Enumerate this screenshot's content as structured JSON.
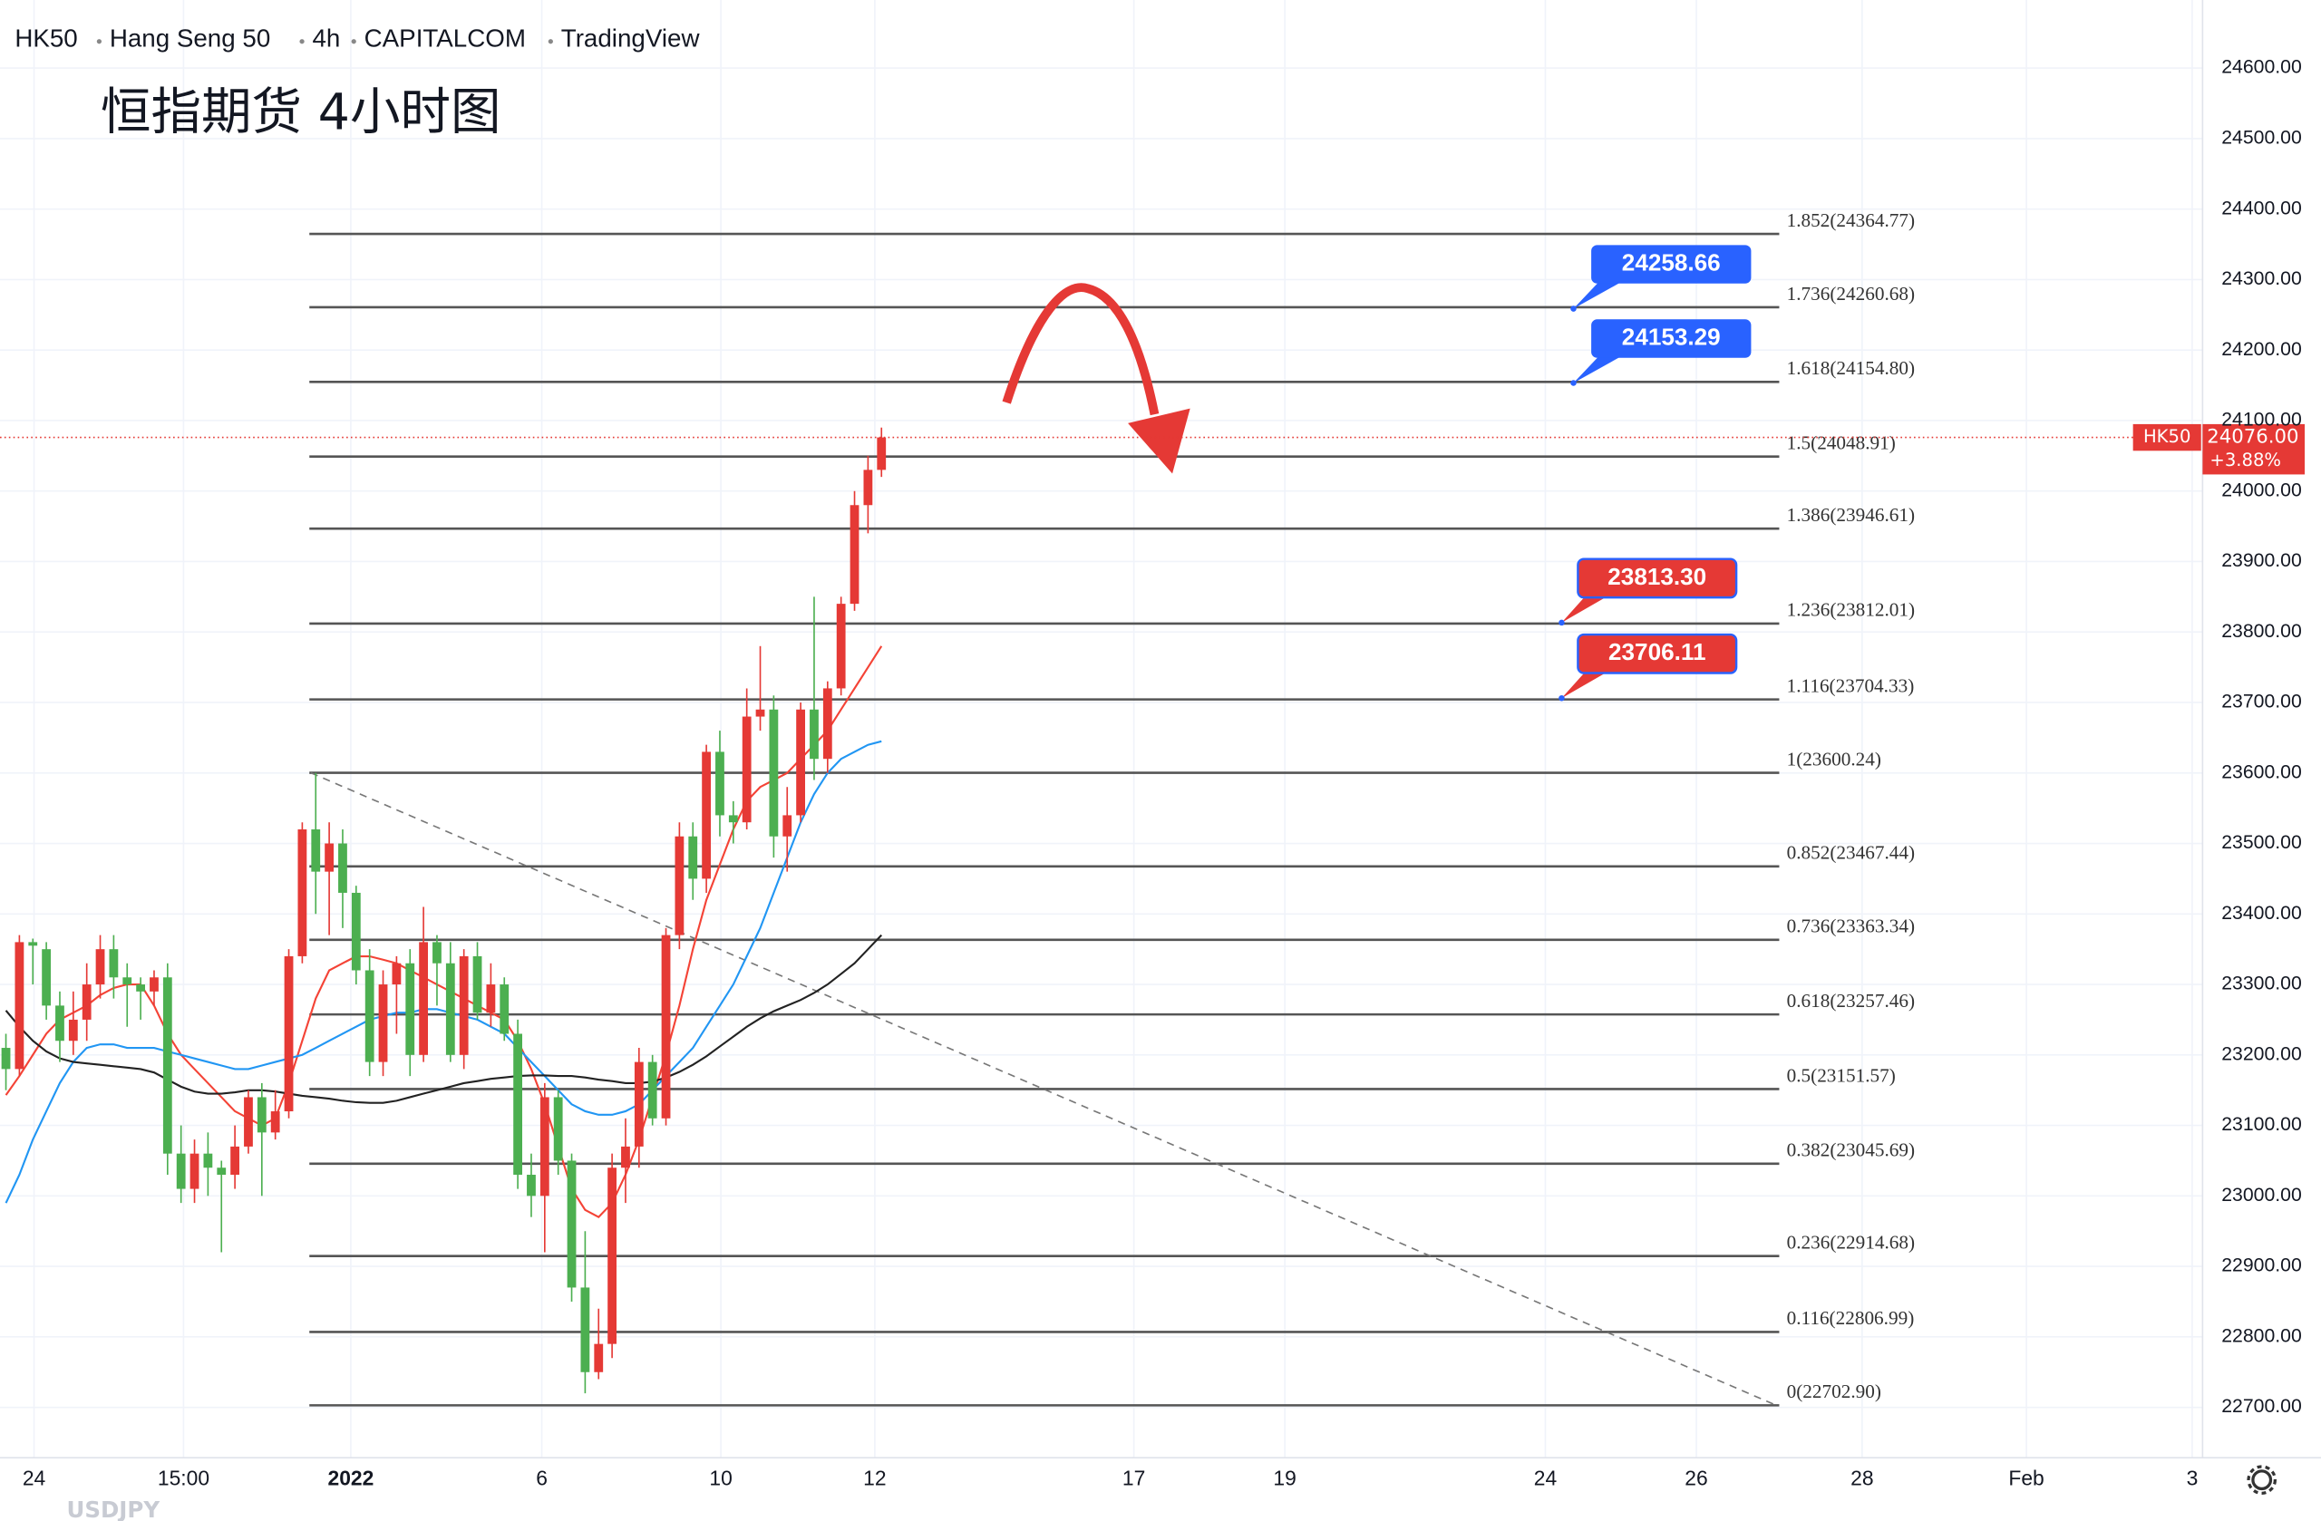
{
  "chart_data": {
    "type": "candlestick",
    "header": {
      "symbol": "HK50",
      "name": "Hang Seng 50",
      "interval": "4h",
      "exchange": "CAPITALCOM",
      "source": "TradingView"
    },
    "title": "恒指期货 4小时图",
    "ylim": [
      22628.6,
      24696.6
    ],
    "yticks": [
      {
        "value": 22700,
        "label": "22700.00"
      },
      {
        "value": 22800,
        "label": "22800.00"
      },
      {
        "value": 22900,
        "label": "22900.00"
      },
      {
        "value": 23000,
        "label": "23000.00"
      },
      {
        "value": 23100,
        "label": "23100.00"
      },
      {
        "value": 23200,
        "label": "23200.00"
      },
      {
        "value": 23300,
        "label": "23300.00"
      },
      {
        "value": 23400,
        "label": "23400.00"
      },
      {
        "value": 23500,
        "label": "23500.00"
      },
      {
        "value": 23600,
        "label": "23600.00"
      },
      {
        "value": 23700,
        "label": "23700.00"
      },
      {
        "value": 23800,
        "label": "23800.00"
      },
      {
        "value": 23900,
        "label": "23900.00"
      },
      {
        "value": 24000,
        "label": "24000.00"
      },
      {
        "value": 24100,
        "label": "24100.00"
      },
      {
        "value": 24200,
        "label": "24200.00"
      },
      {
        "value": 24300,
        "label": "24300.00"
      },
      {
        "value": 24400,
        "label": "24400.00"
      },
      {
        "value": 24500,
        "label": "24500.00"
      },
      {
        "value": 24600,
        "label": "24600.00"
      }
    ],
    "xlabels": [
      "24",
      "15:00",
      "2022",
      "6",
      "10",
      "12",
      "17",
      "19",
      "24",
      "26",
      "28",
      "Feb",
      "3"
    ],
    "grid": true,
    "up_color": "#e53935",
    "down_color": "#4caf50",
    "candles": [
      [
        23210,
        23230,
        23150,
        23180
      ],
      [
        23180,
        23370,
        23170,
        23360
      ],
      [
        23360,
        23365,
        23300,
        23355
      ],
      [
        23350,
        23360,
        23250,
        23270
      ],
      [
        23270,
        23290,
        23190,
        23220
      ],
      [
        23220,
        23290,
        23200,
        23250
      ],
      [
        23250,
        23330,
        23220,
        23300
      ],
      [
        23300,
        23370,
        23280,
        23350
      ],
      [
        23350,
        23370,
        23280,
        23310
      ],
      [
        23310,
        23330,
        23240,
        23300
      ],
      [
        23300,
        23310,
        23250,
        23290
      ],
      [
        23290,
        23320,
        23270,
        23310
      ],
      [
        23310,
        23330,
        23030,
        23060
      ],
      [
        23060,
        23100,
        22990,
        23010
      ],
      [
        23010,
        23080,
        22990,
        23060
      ],
      [
        23060,
        23090,
        23000,
        23040
      ],
      [
        23040,
        23050,
        22920,
        23030
      ],
      [
        23030,
        23100,
        23010,
        23070
      ],
      [
        23070,
        23150,
        23060,
        23140
      ],
      [
        23140,
        23160,
        23000,
        23090
      ],
      [
        23090,
        23150,
        23080,
        23120
      ],
      [
        23120,
        23350,
        23110,
        23340
      ],
      [
        23340,
        23530,
        23330,
        23520
      ],
      [
        23520,
        23600,
        23400,
        23460
      ],
      [
        23460,
        23530,
        23370,
        23500
      ],
      [
        23500,
        23520,
        23380,
        23430
      ],
      [
        23430,
        23440,
        23300,
        23320
      ],
      [
        23320,
        23350,
        23170,
        23190
      ],
      [
        23190,
        23320,
        23170,
        23300
      ],
      [
        23300,
        23340,
        23230,
        23330
      ],
      [
        23330,
        23350,
        23170,
        23200
      ],
      [
        23200,
        23410,
        23190,
        23360
      ],
      [
        23360,
        23370,
        23270,
        23330
      ],
      [
        23330,
        23360,
        23190,
        23200
      ],
      [
        23200,
        23350,
        23180,
        23340
      ],
      [
        23340,
        23360,
        23250,
        23260
      ],
      [
        23260,
        23330,
        23240,
        23300
      ],
      [
        23300,
        23310,
        23220,
        23230
      ],
      [
        23230,
        23250,
        23010,
        23030
      ],
      [
        23030,
        23060,
        22970,
        23000
      ],
      [
        23000,
        23160,
        22920,
        23140
      ],
      [
        23140,
        23150,
        23030,
        23050
      ],
      [
        23050,
        23060,
        22850,
        22870
      ],
      [
        22870,
        22950,
        22720,
        22750
      ],
      [
        22750,
        22840,
        22740,
        22790
      ],
      [
        22790,
        23060,
        22770,
        23040
      ],
      [
        23040,
        23110,
        22990,
        23070
      ],
      [
        23070,
        23210,
        23040,
        23190
      ],
      [
        23190,
        23200,
        23100,
        23110
      ],
      [
        23110,
        23380,
        23100,
        23370
      ],
      [
        23370,
        23530,
        23350,
        23510
      ],
      [
        23510,
        23530,
        23420,
        23450
      ],
      [
        23450,
        23640,
        23430,
        23630
      ],
      [
        23630,
        23660,
        23510,
        23540
      ],
      [
        23540,
        23560,
        23500,
        23530
      ],
      [
        23530,
        23720,
        23520,
        23680
      ],
      [
        23680,
        23780,
        23660,
        23690
      ],
      [
        23690,
        23710,
        23480,
        23510
      ],
      [
        23510,
        23580,
        23460,
        23540
      ],
      [
        23540,
        23700,
        23530,
        23690
      ],
      [
        23690,
        23850,
        23590,
        23620
      ],
      [
        23620,
        23730,
        23600,
        23720
      ],
      [
        23720,
        23850,
        23710,
        23840
      ],
      [
        23840,
        24000,
        23830,
        23980
      ],
      [
        23980,
        24050,
        23940,
        24030
      ],
      [
        24030,
        24090,
        24020,
        24076
      ]
    ],
    "series": [
      {
        "color": "#f44336",
        "values": [
          23143,
          23170,
          23200,
          23230,
          23250,
          23260,
          23270,
          23285,
          23295,
          23300,
          23300,
          23270,
          23230,
          23200,
          23180,
          23160,
          23140,
          23120,
          23110,
          23100,
          23110,
          23160,
          23220,
          23280,
          23320,
          23330,
          23340,
          23340,
          23335,
          23330,
          23320,
          23310,
          23300,
          23290,
          23280,
          23270,
          23260,
          23250,
          23220,
          23180,
          23130,
          23070,
          23010,
          22980,
          22970,
          22990,
          23030,
          23080,
          23140,
          23200,
          23270,
          23350,
          23420,
          23470,
          23520,
          23560,
          23580,
          23590,
          23600,
          23620,
          23640,
          23660,
          23690,
          23720,
          23750,
          23780
        ]
      },
      {
        "color": "#2196f3",
        "values": [
          22990,
          23030,
          23080,
          23120,
          23160,
          23190,
          23210,
          23215,
          23215,
          23210,
          23210,
          23210,
          23205,
          23200,
          23195,
          23190,
          23185,
          23180,
          23180,
          23185,
          23190,
          23195,
          23200,
          23210,
          23220,
          23230,
          23240,
          23250,
          23255,
          23260,
          23260,
          23265,
          23265,
          23260,
          23255,
          23250,
          23240,
          23230,
          23210,
          23190,
          23170,
          23150,
          23130,
          23120,
          23115,
          23115,
          23120,
          23130,
          23150,
          23170,
          23190,
          23210,
          23240,
          23270,
          23300,
          23340,
          23380,
          23430,
          23480,
          23530,
          23570,
          23600,
          23620,
          23630,
          23640,
          23645
        ]
      },
      {
        "color": "#222222",
        "values": [
          23263,
          23240,
          23220,
          23205,
          23195,
          23190,
          23188,
          23186,
          23184,
          23182,
          23180,
          23175,
          23165,
          23155,
          23148,
          23145,
          23145,
          23147,
          23150,
          23150,
          23148,
          23145,
          23142,
          23140,
          23138,
          23135,
          23133,
          23132,
          23132,
          23135,
          23140,
          23145,
          23150,
          23155,
          23160,
          23163,
          23166,
          23168,
          23170,
          23171,
          23171,
          23170,
          23170,
          23168,
          23165,
          23163,
          23160,
          23160,
          23162,
          23168,
          23176,
          23186,
          23198,
          23212,
          23226,
          23240,
          23252,
          23262,
          23270,
          23278,
          23288,
          23300,
          23315,
          23330,
          23350,
          23370
        ]
      }
    ],
    "fib_levels": [
      {
        "value": 24364.77,
        "label": "1.852(24364.77)"
      },
      {
        "value": 24260.68,
        "label": "1.736(24260.68)"
      },
      {
        "value": 24154.8,
        "label": "1.618(24154.80)"
      },
      {
        "value": 24048.91,
        "label": "1.5(24048.91)"
      },
      {
        "value": 23946.61,
        "label": "1.386(23946.61)"
      },
      {
        "value": 23812.01,
        "label": "1.236(23812.01)"
      },
      {
        "value": 23704.33,
        "label": "1.116(23704.33)"
      },
      {
        "value": 23600.24,
        "label": "1(23600.24)"
      },
      {
        "value": 23467.44,
        "label": "0.852(23467.44)"
      },
      {
        "value": 23363.34,
        "label": "0.736(23363.34)"
      },
      {
        "value": 23257.46,
        "label": "0.618(23257.46)"
      },
      {
        "value": 23151.57,
        "label": "0.5(23151.57)"
      },
      {
        "value": 23045.69,
        "label": "0.382(23045.69)"
      },
      {
        "value": 22914.68,
        "label": "0.236(22914.68)"
      },
      {
        "value": 22806.99,
        "label": "0.116(22806.99)"
      },
      {
        "value": 22702.9,
        "label": "0(22702.90)"
      }
    ],
    "callouts": [
      {
        "value": 24258.66,
        "label": "24258.66",
        "color": "#2962ff"
      },
      {
        "value": 24153.29,
        "label": "24153.29",
        "color": "#2962ff"
      },
      {
        "value": 23813.3,
        "label": "23813.30",
        "color": "#e53935"
      },
      {
        "value": 23706.11,
        "label": "23706.11",
        "color": "#e53935"
      }
    ],
    "last_price": {
      "symbol": "HK50",
      "value": 24076,
      "label": "24076.00",
      "change": {
        "value": 3.88,
        "label": "+3.88%"
      }
    },
    "footer": "USDJPY"
  }
}
